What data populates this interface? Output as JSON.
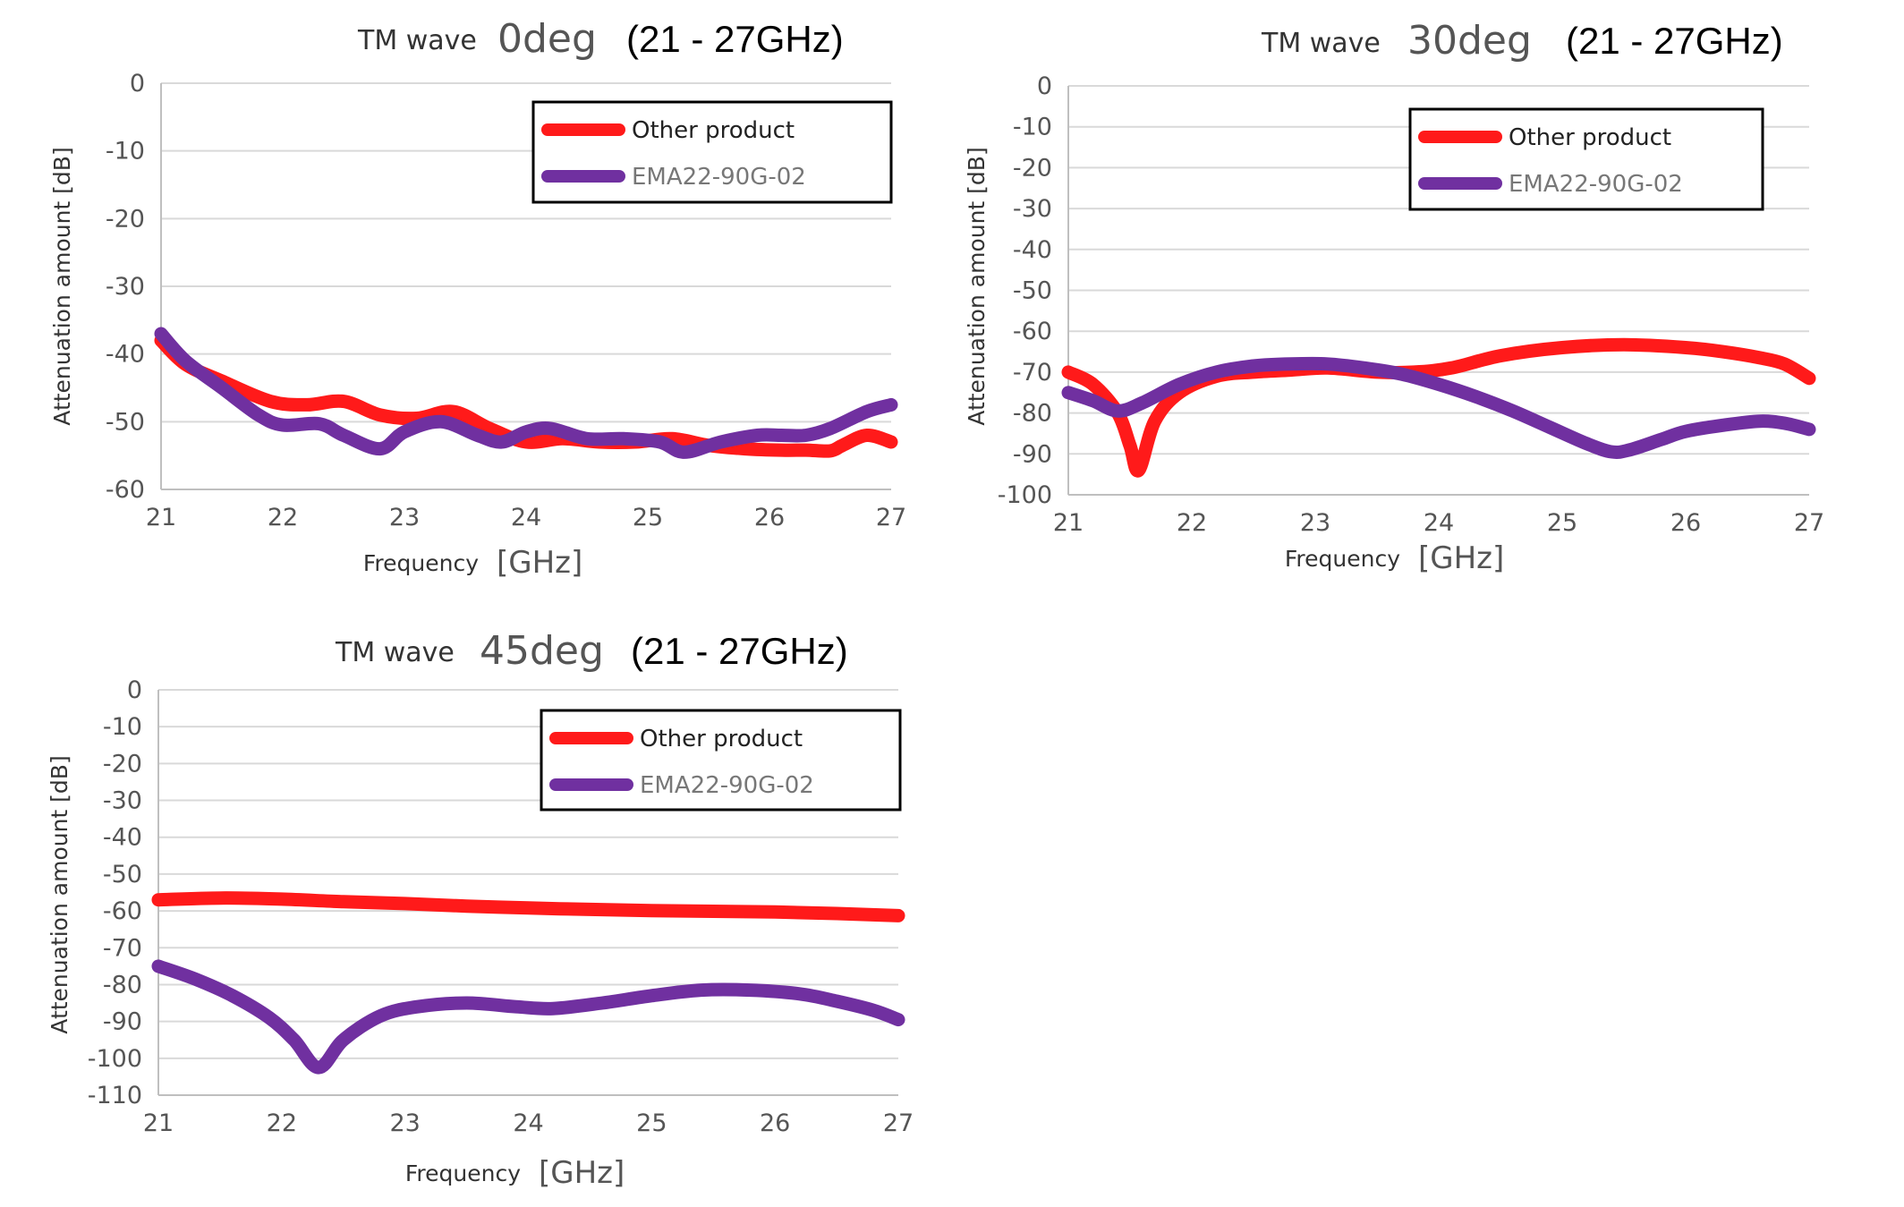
{
  "chart_data": [
    {
      "type": "line",
      "title_main": "TM wave",
      "title_deg": "0deg",
      "title_range": "(21 - 27GHz)",
      "xlabel": "Frequency",
      "xunit": "[GHz]",
      "ylabel": "Attenuation amount [dB]",
      "xlim": [
        21,
        27
      ],
      "ylim": [
        -60,
        0
      ],
      "xticks": [
        "21",
        "22",
        "23",
        "24",
        "25",
        "26",
        "27"
      ],
      "yticks": [
        "0",
        "-10",
        "-20",
        "-30",
        "-40",
        "-50",
        "-60"
      ],
      "grid": true,
      "legend_position": "top-right",
      "series": [
        {
          "name": "Other product",
          "color": "#ff1a1a",
          "x": [
            21,
            21.2,
            21.5,
            21.9,
            22.2,
            22.5,
            22.8,
            23.1,
            23.4,
            23.7,
            24.0,
            24.3,
            24.6,
            24.9,
            25.2,
            25.5,
            25.8,
            26.1,
            26.3,
            26.5,
            26.6,
            26.8,
            27
          ],
          "y": [
            -38,
            -41.5,
            -44,
            -47,
            -47.5,
            -47,
            -49,
            -49.5,
            -48.5,
            -51,
            -53,
            -52.5,
            -53,
            -53,
            -52.5,
            -53.5,
            -54,
            -54.2,
            -54.2,
            -54.3,
            -53.5,
            -52,
            -53
          ]
        },
        {
          "name": "EMA22-90G-02",
          "color": "#7030a0",
          "x": [
            21,
            21.2,
            21.5,
            21.8,
            22.0,
            22.3,
            22.5,
            22.8,
            23.0,
            23.3,
            23.6,
            23.8,
            24.0,
            24.2,
            24.5,
            24.8,
            25.1,
            25.3,
            25.6,
            25.9,
            26.1,
            26.3,
            26.5,
            26.8,
            27
          ],
          "y": [
            -37,
            -41,
            -45,
            -49,
            -50.5,
            -50.3,
            -52,
            -54,
            -51.5,
            -50,
            -52,
            -53,
            -51.5,
            -51,
            -52.5,
            -52.5,
            -53,
            -54.5,
            -53,
            -52,
            -52,
            -52,
            -51,
            -48.5,
            -47.5
          ]
        }
      ]
    },
    {
      "type": "line",
      "title_main": "TM wave",
      "title_deg": "30deg",
      "title_range": "(21 - 27GHz)",
      "xlabel": "Frequency",
      "xunit": "[GHz]",
      "ylabel": "Attenuation amount [dB]",
      "xlim": [
        21,
        27
      ],
      "ylim": [
        -100,
        0
      ],
      "xticks": [
        "21",
        "22",
        "23",
        "24",
        "25",
        "26",
        "27"
      ],
      "yticks": [
        "0",
        "-10",
        "-20",
        "-30",
        "-40",
        "-50",
        "-60",
        "-70",
        "-80",
        "-90",
        "-100"
      ],
      "grid": true,
      "legend_position": "top-right",
      "series": [
        {
          "name": "Other product",
          "color": "#ff1a1a",
          "x": [
            21,
            21.2,
            21.4,
            21.5,
            21.57,
            21.7,
            21.9,
            22.2,
            22.5,
            22.8,
            23.1,
            23.5,
            23.8,
            24.1,
            24.5,
            25.0,
            25.5,
            26.0,
            26.3,
            26.6,
            26.8,
            27
          ],
          "y": [
            -70,
            -73,
            -80,
            -88,
            -94,
            -82,
            -75,
            -71,
            -70,
            -69.5,
            -69,
            -70,
            -70,
            -69,
            -66,
            -64,
            -63.3,
            -64,
            -65,
            -66.5,
            -68,
            -71.5
          ]
        },
        {
          "name": "EMA22-90G-02",
          "color": "#7030a0",
          "x": [
            21,
            21.2,
            21.4,
            21.6,
            21.9,
            22.2,
            22.5,
            22.8,
            23.1,
            23.4,
            23.7,
            24.0,
            24.3,
            24.6,
            24.9,
            25.2,
            25.4,
            25.55,
            25.8,
            26.0,
            26.3,
            26.6,
            26.8,
            27
          ],
          "y": [
            -75,
            -77,
            -79.5,
            -77.5,
            -73,
            -70,
            -68.5,
            -68,
            -68,
            -69,
            -70.5,
            -73,
            -76,
            -79.5,
            -83.5,
            -87.5,
            -89.5,
            -89,
            -86.5,
            -84.5,
            -83,
            -82,
            -82.5,
            -84
          ]
        }
      ]
    },
    {
      "type": "line",
      "title_main": "TM wave",
      "title_deg": "45deg",
      "title_range": "(21 - 27GHz)",
      "xlabel": "Frequency",
      "xunit": "[GHz]",
      "ylabel": "Attenuation amount [dB]",
      "xlim": [
        21,
        27
      ],
      "ylim": [
        -110,
        0
      ],
      "xticks": [
        "21",
        "22",
        "23",
        "24",
        "25",
        "26",
        "27"
      ],
      "yticks": [
        "0",
        "-10",
        "-20",
        "-30",
        "-40",
        "-50",
        "-60",
        "-70",
        "-80",
        "-90",
        "-100",
        "-110"
      ],
      "grid": true,
      "legend_position": "top-right",
      "series": [
        {
          "name": "Other product",
          "color": "#ff1a1a",
          "x": [
            21,
            21.5,
            22,
            22.5,
            23,
            23.5,
            24,
            24.5,
            25,
            25.5,
            26,
            26.5,
            27
          ],
          "y": [
            -57,
            -56.5,
            -56.8,
            -57.5,
            -58,
            -58.7,
            -59.2,
            -59.6,
            -59.9,
            -60.1,
            -60.3,
            -60.7,
            -61.3
          ]
        },
        {
          "name": "EMA22-90G-02",
          "color": "#7030a0",
          "x": [
            21,
            21.3,
            21.6,
            21.9,
            22.1,
            22.3,
            22.5,
            22.8,
            23.1,
            23.5,
            23.9,
            24.2,
            24.6,
            25.0,
            25.4,
            25.8,
            26.2,
            26.5,
            26.8,
            27
          ],
          "y": [
            -75,
            -78.5,
            -83,
            -89,
            -95,
            -102.5,
            -95,
            -88.5,
            -86,
            -85,
            -86,
            -86.5,
            -85,
            -83,
            -81.5,
            -81.5,
            -82.5,
            -84.5,
            -87,
            -89.5
          ]
        }
      ]
    }
  ]
}
